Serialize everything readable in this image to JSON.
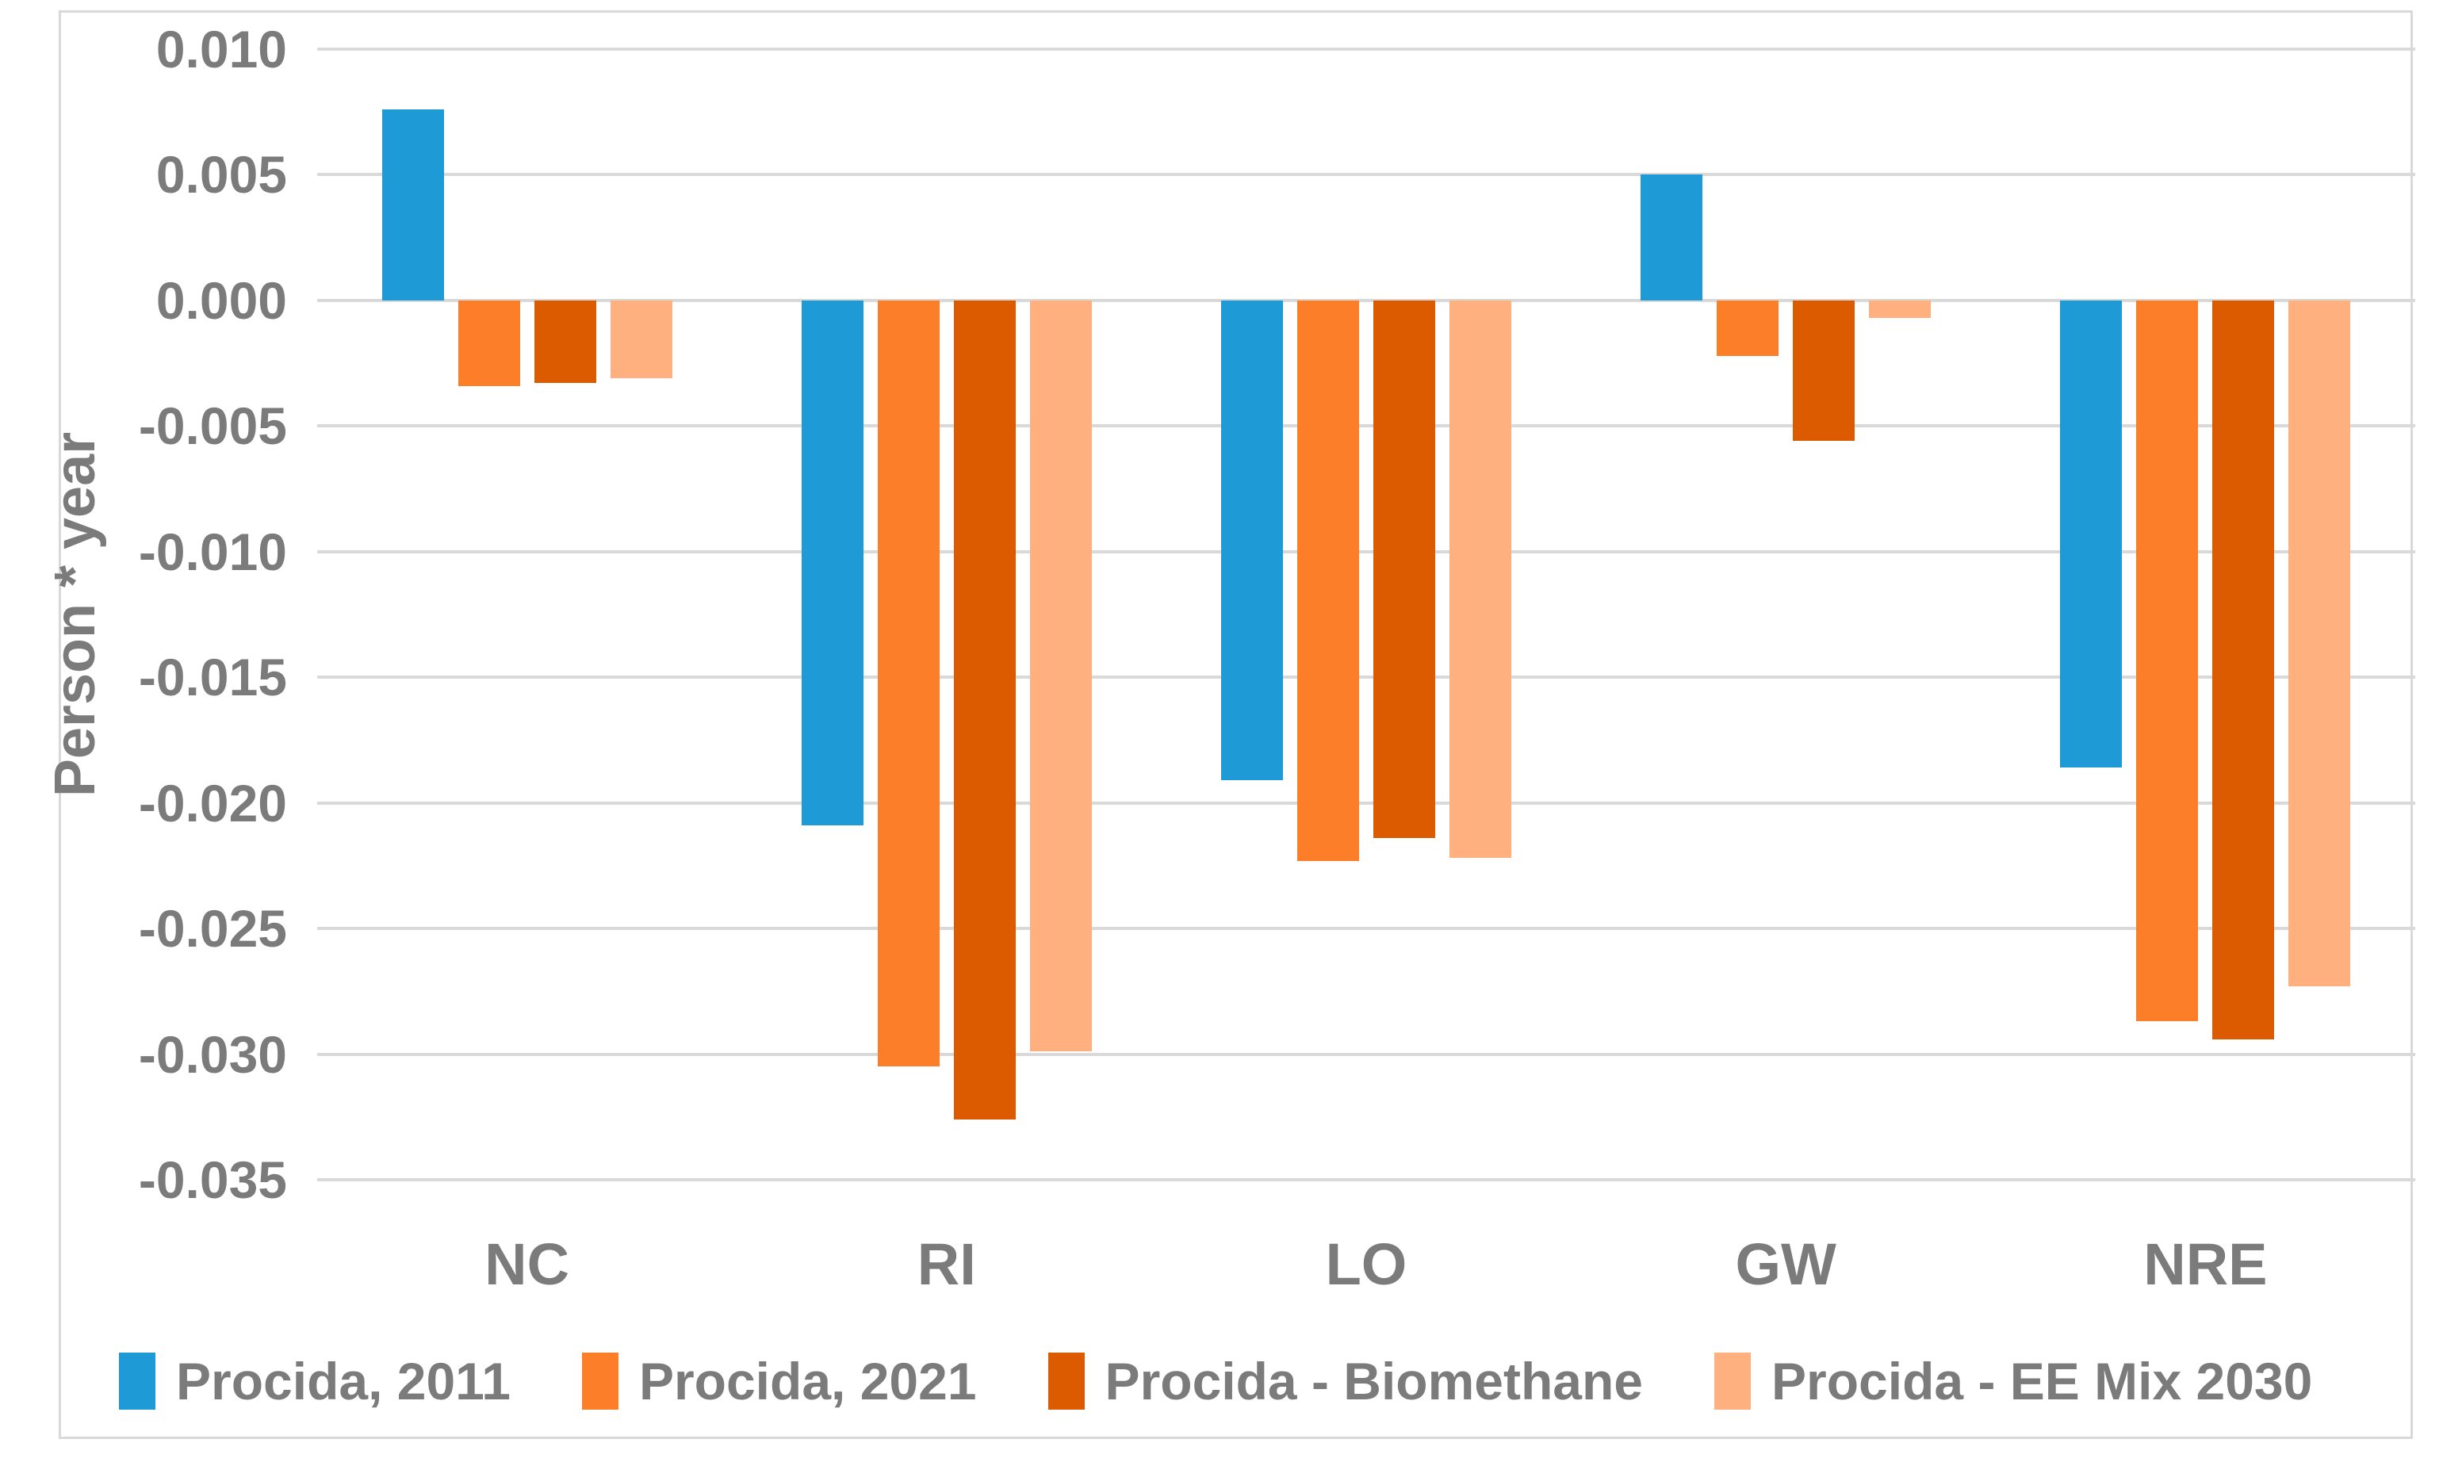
{
  "chart_data": {
    "type": "bar",
    "title": "",
    "ylabel": "Person * year",
    "xlabel": "",
    "grid": true,
    "legend_position": "bottom",
    "categories": [
      "NC",
      "RI",
      "LO",
      "GW",
      "NRE"
    ],
    "series": [
      {
        "name": "Procida, 2011",
        "color": "#1E9BD7",
        "values": [
          0.0076,
          -0.0209,
          -0.0191,
          0.005,
          -0.0186
        ]
      },
      {
        "name": "Procida, 2021",
        "color": "#FC7E28",
        "values": [
          -0.0034,
          -0.0305,
          -0.0223,
          -0.0022,
          -0.0287
        ]
      },
      {
        "name": "Procida - Biomethane",
        "color": "#DC5A00",
        "values": [
          -0.0033,
          -0.0326,
          -0.0214,
          -0.0056,
          -0.0294
        ]
      },
      {
        "name": "Procida - EE Mix 2030",
        "color": "#FFB07E",
        "values": [
          -0.0031,
          -0.0299,
          -0.0222,
          -0.0007,
          -0.0273
        ]
      }
    ],
    "y_axis": {
      "min": -0.035,
      "max": 0.01,
      "step": 0.005,
      "ticks": [
        {
          "label": "0.010",
          "value": 0.01
        },
        {
          "label": "0.005",
          "value": 0.005
        },
        {
          "label": "0.000",
          "value": 0.0
        },
        {
          "label": "-0.005",
          "value": -0.005
        },
        {
          "label": "-0.010",
          "value": -0.01
        },
        {
          "label": "-0.015",
          "value": -0.015
        },
        {
          "label": "-0.020",
          "value": -0.02
        },
        {
          "label": "-0.025",
          "value": -0.025
        },
        {
          "label": "-0.030",
          "value": -0.03
        },
        {
          "label": "-0.035",
          "value": -0.035
        }
      ]
    },
    "colors": {
      "gridline": "#D9D9D9",
      "border": "#D9D9D9",
      "text": "#7B7B7B"
    }
  }
}
